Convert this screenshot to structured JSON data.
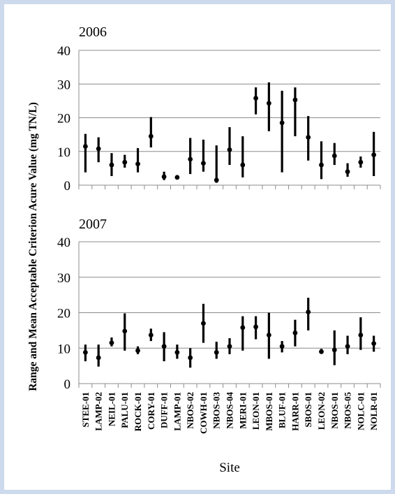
{
  "chart_data": {
    "type": "scatter",
    "ylabel": "Range and Mean Acceptable Criterion Acure Value (mg TN/L)",
    "xlabel": "Site",
    "panels": [
      {
        "title": "2006",
        "ylim": [
          0,
          40
        ],
        "yticks": [
          0,
          10,
          20,
          30,
          40
        ],
        "grid": true,
        "categories": [
          "STEE-01",
          "LAMP-02",
          "NEIL-01",
          "PALU-01",
          "ROCK-01",
          "CORY-01",
          "DUFF-01",
          "LAMP-01",
          "NBOS-02",
          "COWH-01",
          "NBOS-03",
          "NBOS-04",
          "MERI-01",
          "LEON-01",
          "MBOS-01",
          "BLUF-01",
          "HARR-01",
          "SBOS-01",
          "LEON-02",
          "NBOS-01",
          "NBOS-05",
          "NOLC-01",
          "NOLR-01"
        ],
        "mean": [
          11.5,
          10.8,
          6.0,
          6.8,
          6.3,
          14.5,
          2.5,
          2.3,
          7.7,
          6.5,
          1.5,
          10.5,
          6.0,
          25.8,
          24.3,
          18.5,
          25.3,
          14.2,
          6.0,
          8.7,
          4.0,
          6.8,
          9.0
        ],
        "min": [
          3.8,
          6.8,
          2.7,
          5.2,
          3.8,
          11.2,
          1.5,
          1.8,
          3.3,
          4.0,
          0.7,
          6.0,
          2.3,
          21.0,
          16.0,
          3.8,
          14.5,
          7.3,
          1.8,
          6.0,
          2.5,
          5.2,
          2.7
        ],
        "max": [
          15.2,
          14.2,
          9.5,
          9.0,
          11.0,
          20.2,
          4.0,
          3.0,
          14.0,
          13.5,
          11.8,
          17.2,
          14.5,
          29.0,
          30.5,
          28.0,
          29.0,
          20.5,
          13.0,
          12.5,
          6.5,
          8.5,
          15.8
        ]
      },
      {
        "title": "2007",
        "ylim": [
          0,
          40
        ],
        "yticks": [
          0,
          10,
          20,
          30,
          40
        ],
        "grid": true,
        "categories": [
          "STEE-01",
          "LAMP-02",
          "NEIL-01",
          "PALU-01",
          "ROCK-01",
          "CORY-01",
          "DUFF-01",
          "LAMP-01",
          "NBOS-02",
          "COWH-01",
          "NBOS-03",
          "NBOS-04",
          "MERI-01",
          "LEON-01",
          "MBOS-01",
          "BLUF-01",
          "HARR-01",
          "SBOS-01",
          "LEON-02",
          "NBOS-01",
          "NBOS-05",
          "NOLC-01",
          "NOLR-01"
        ],
        "mean": [
          8.8,
          7.3,
          11.5,
          14.8,
          9.3,
          13.7,
          10.5,
          8.8,
          7.3,
          17.0,
          8.8,
          10.5,
          15.8,
          16.0,
          13.7,
          10.5,
          14.3,
          20.2,
          9.0,
          9.5,
          10.5,
          13.7,
          11.3
        ],
        "min": [
          6.3,
          4.8,
          10.5,
          9.3,
          8.3,
          12.0,
          6.3,
          7.0,
          4.5,
          11.5,
          7.0,
          8.3,
          9.3,
          12.5,
          7.0,
          8.8,
          10.5,
          15.0,
          8.5,
          5.2,
          8.3,
          9.5,
          9.0
        ],
        "max": [
          11.0,
          11.0,
          13.0,
          19.8,
          10.5,
          15.5,
          14.5,
          11.0,
          10.0,
          22.5,
          11.8,
          12.8,
          19.0,
          19.0,
          20.0,
          12.0,
          18.0,
          24.2,
          9.8,
          15.0,
          13.5,
          18.7,
          13.5
        ]
      }
    ]
  }
}
